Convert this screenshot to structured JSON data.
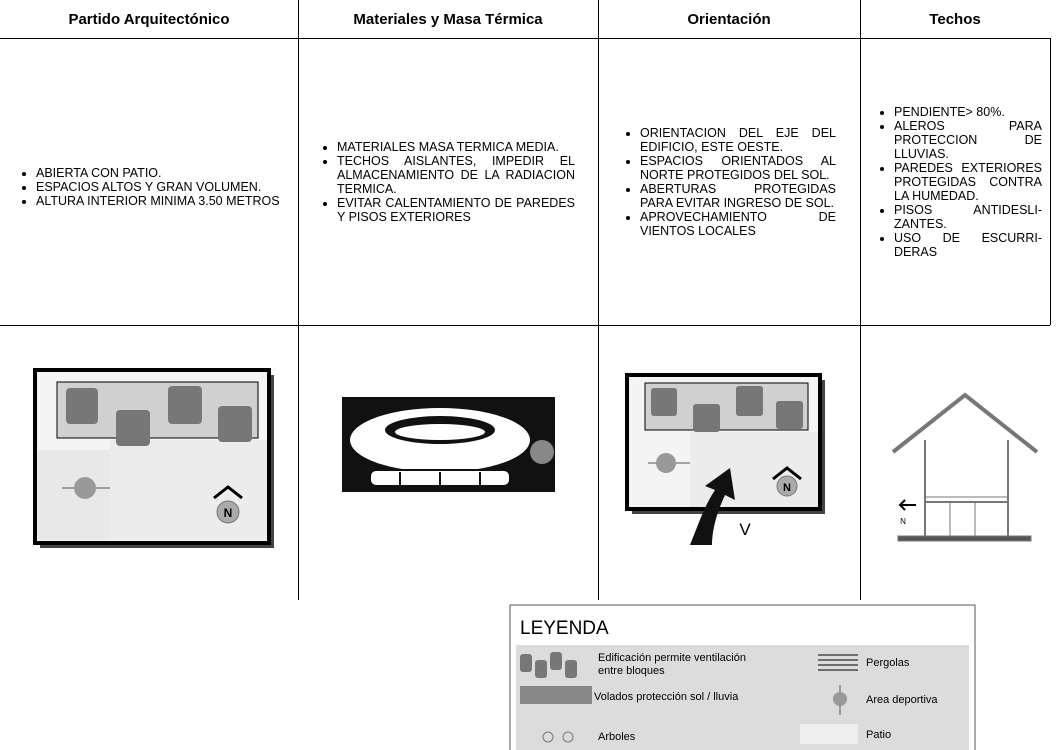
{
  "table": {
    "headers": [
      "Partido Arquitectónico",
      "Materiales y Masa Térmica",
      "Orientación",
      "Techos"
    ],
    "rows": [
      [
        [
          "ABIERTA CON PATIO.",
          "ESPACIOS ALTOS Y GRAN VOLUMEN.",
          "ALTURA INTERIOR MINIMA 3.50 METROS"
        ],
        [
          "MATERIALES MASA TERMICA MEDIA.",
          "TECHOS AISLANTES, IMPEDIR EL ALMACENAMIENTO DE LA RADIACION TERMICA.",
          "EVITAR CALENTAMIENTO DE PAREDES Y PISOS EXTERIORES"
        ],
        [
          "ORIENTACION DEL EJE DEL EDIFICIO, ESTE OESTE.",
          "ESPACIOS ORIENTADOS AL NORTE PROTEGIDOS DEL SOL.",
          "ABERTURAS PROTEGIDAS PARA EVITAR INGRESO DE SOL.",
          "APROVECHAMIENTO DE VIENTOS LOCALES"
        ],
        [
          "PENDIENTE> 80%.",
          "ALEROS PARA PROTECCION DE LLUVIAS.",
          "PAREDES EXTERIORES PROTEGIDAS CONTRA LA HUMEDAD.",
          "PISOS ANTIDESLI-ZANTES.",
          "USO DE ESCURRI-DERAS"
        ]
      ]
    ]
  },
  "diagrams": {
    "partido": {
      "north": "N"
    },
    "orientacion": {
      "north": "N",
      "wind": "V"
    },
    "techos": {
      "north": "N"
    }
  },
  "legend": {
    "title": "LEYENDA",
    "items": [
      "Edificación permite ventilación entre bloques",
      "Volados protección sol / lluvia",
      "Arboles",
      "Pergolas",
      "Area deportiva",
      "Patio"
    ]
  }
}
